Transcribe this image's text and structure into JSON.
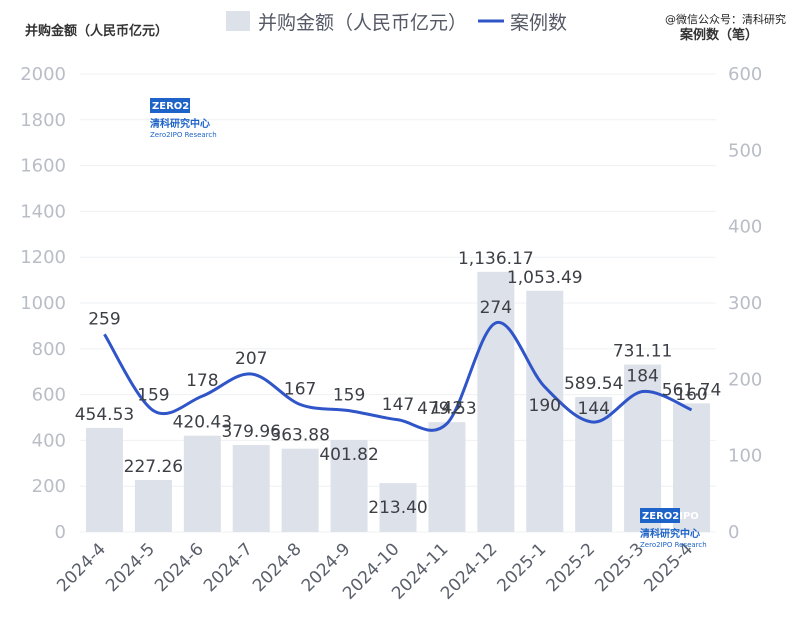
{
  "watermark": "@微信公众号：清科研究",
  "logo": {
    "mark": "ZERO2IPO",
    "name_cn": "清科研究中心",
    "name_en": "Zero2IPO Research"
  },
  "chart_data": {
    "type": "bar",
    "categories": [
      "2024-4",
      "2024-5",
      "2024-6",
      "2024-7",
      "2024-8",
      "2024-9",
      "2024-10",
      "2024-11",
      "2024-12",
      "2025-1",
      "2025-2",
      "2025-3",
      "2025-4"
    ],
    "series": [
      {
        "name": "并购金额（人民币亿元）",
        "type": "bar",
        "axis": "left",
        "color": "#dde1ea",
        "values": [
          454.53,
          227.26,
          420.43,
          379.96,
          363.88,
          401.82,
          213.4,
          479.53,
          1136.17,
          1053.49,
          589.54,
          731.11,
          561.74
        ],
        "labels": [
          "454.53",
          "227.26",
          "420.43",
          "379.96",
          "363.88",
          "401.82",
          "213.40",
          "479.53",
          "1,136.17",
          "1,053.49",
          "589.54",
          "731.11",
          "561.74"
        ]
      },
      {
        "name": "案例数",
        "type": "line",
        "axis": "right",
        "color": "#2f55c8",
        "values": [
          259,
          159,
          178,
          207,
          167,
          159,
          147,
          142,
          274,
          190,
          144,
          184,
          160
        ]
      }
    ],
    "y_left": {
      "label": "并购金额（人民币亿元）",
      "range": [
        0,
        2000
      ],
      "ticks": [
        0,
        200,
        400,
        600,
        800,
        1000,
        1200,
        1400,
        1600,
        1800,
        2000
      ]
    },
    "y_right": {
      "label": "案例数（笔）",
      "range": [
        0,
        600
      ],
      "ticks": [
        0,
        100,
        200,
        300,
        400,
        500,
        600
      ]
    },
    "grid": true,
    "legend": "top-center"
  }
}
